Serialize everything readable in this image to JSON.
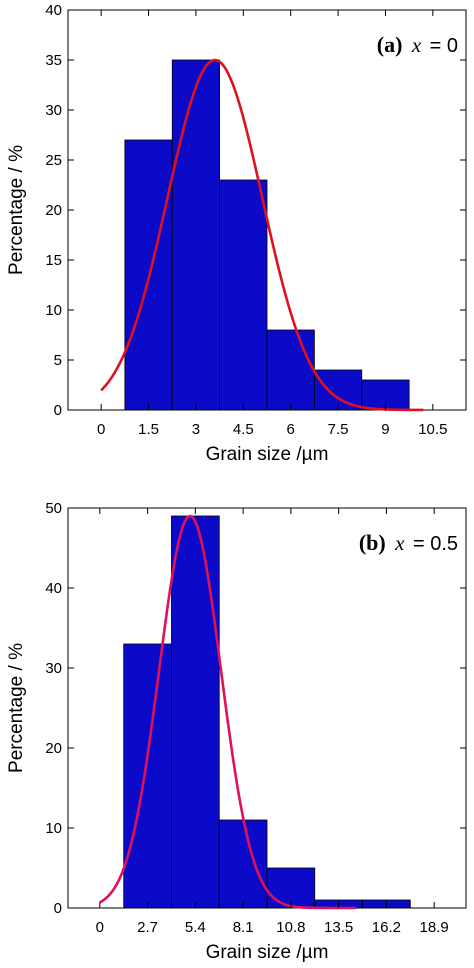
{
  "chart_data": [
    {
      "type": "bar",
      "panel_tag": "(a)",
      "panel_var": "x",
      "panel_value": "= 0",
      "xlabel": "Grain size /µm",
      "ylabel": "Percentage / %",
      "xlim": [
        -1.05,
        11.55
      ],
      "ylim": [
        0,
        40
      ],
      "x_ticks": [
        0,
        1.5,
        3,
        4.5,
        6,
        7.5,
        9,
        10.5
      ],
      "x_tick_labels": [
        "0",
        "1.5",
        "3",
        "4.5",
        "6",
        "7.5",
        "9",
        "10.5"
      ],
      "y_ticks": [
        0,
        5,
        10,
        15,
        20,
        25,
        30,
        35,
        40
      ],
      "y_tick_labels": [
        "0",
        "5",
        "10",
        "15",
        "20",
        "25",
        "30",
        "35",
        "40"
      ],
      "bins": [
        [
          0.75,
          2.25
        ],
        [
          2.25,
          3.75
        ],
        [
          3.75,
          5.25
        ],
        [
          5.25,
          6.75
        ],
        [
          6.75,
          8.25
        ],
        [
          8.25,
          9.75
        ]
      ],
      "values": [
        27,
        35,
        23,
        8,
        4,
        3
      ],
      "fit_curve": {
        "type": "gaussian",
        "amplitude": 35,
        "mean": 3.6,
        "sigma": 1.5,
        "x_range": [
          0,
          10.2
        ]
      },
      "bar_color": "#0a0ac8",
      "curve_color": "#e01020",
      "grid": false
    },
    {
      "type": "bar",
      "panel_tag": "(b)",
      "panel_var": "x",
      "panel_value": "= 0.5",
      "xlabel": "Grain size /µm",
      "ylabel": "Percentage / %",
      "xlim": [
        -1.8,
        20.7
      ],
      "ylim": [
        0,
        50
      ],
      "x_ticks": [
        0,
        2.7,
        5.4,
        8.1,
        10.8,
        13.5,
        16.2,
        18.9
      ],
      "x_tick_labels": [
        "0",
        "2.7",
        "5.4",
        "8.1",
        "10.8",
        "13.5",
        "16.2",
        "18.9"
      ],
      "y_ticks": [
        0,
        10,
        20,
        30,
        40,
        50
      ],
      "y_tick_labels": [
        "0",
        "10",
        "20",
        "30",
        "40",
        "50"
      ],
      "bins": [
        [
          1.35,
          4.05
        ],
        [
          4.05,
          6.75
        ],
        [
          6.75,
          9.45
        ],
        [
          9.45,
          12.15
        ],
        [
          12.15,
          14.85
        ],
        [
          14.85,
          17.55
        ]
      ],
      "values": [
        33,
        49,
        11,
        5,
        1,
        1
      ],
      "fit_curve": {
        "type": "gaussian",
        "amplitude": 49,
        "mean": 5.1,
        "sigma": 1.75,
        "x_range": [
          0,
          14.5
        ]
      },
      "bar_color": "#0a0ac8",
      "curve_color": "#e0105a",
      "grid": false
    }
  ]
}
